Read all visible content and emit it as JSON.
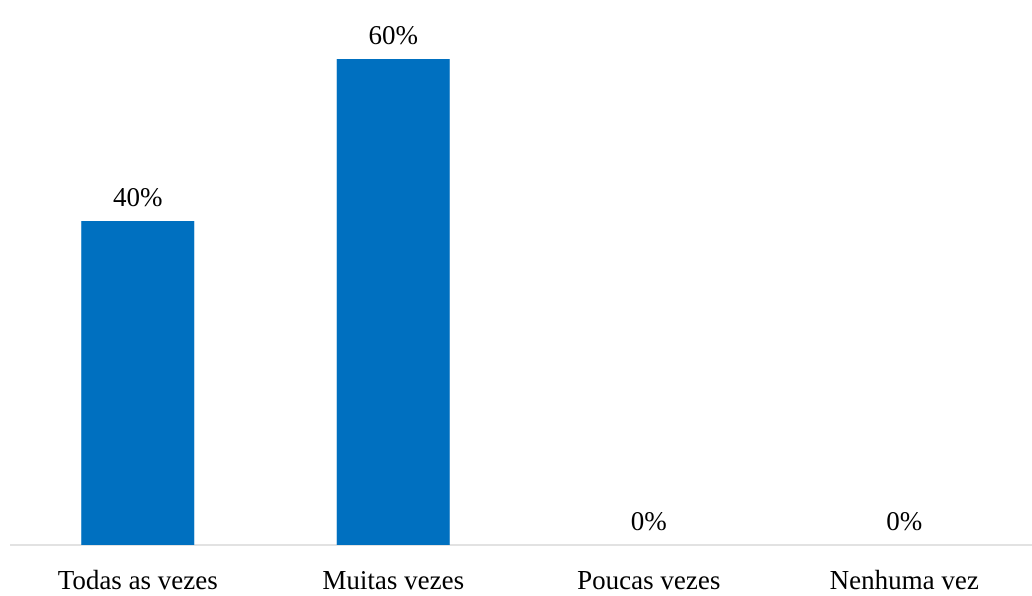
{
  "chart_data": {
    "type": "bar",
    "categories": [
      "Todas as vezes",
      "Muitas vezes",
      "Poucas vezes",
      "Nenhuma vez"
    ],
    "values": [
      40,
      60,
      0,
      0
    ],
    "data_labels": [
      "40%",
      "60%",
      "0%",
      "0%"
    ],
    "ylim": [
      0,
      60
    ],
    "grid": false,
    "legend": "none",
    "colors": {
      "bar": "#0070C0",
      "axis": "#D9D9D9",
      "text": "#000000"
    }
  }
}
